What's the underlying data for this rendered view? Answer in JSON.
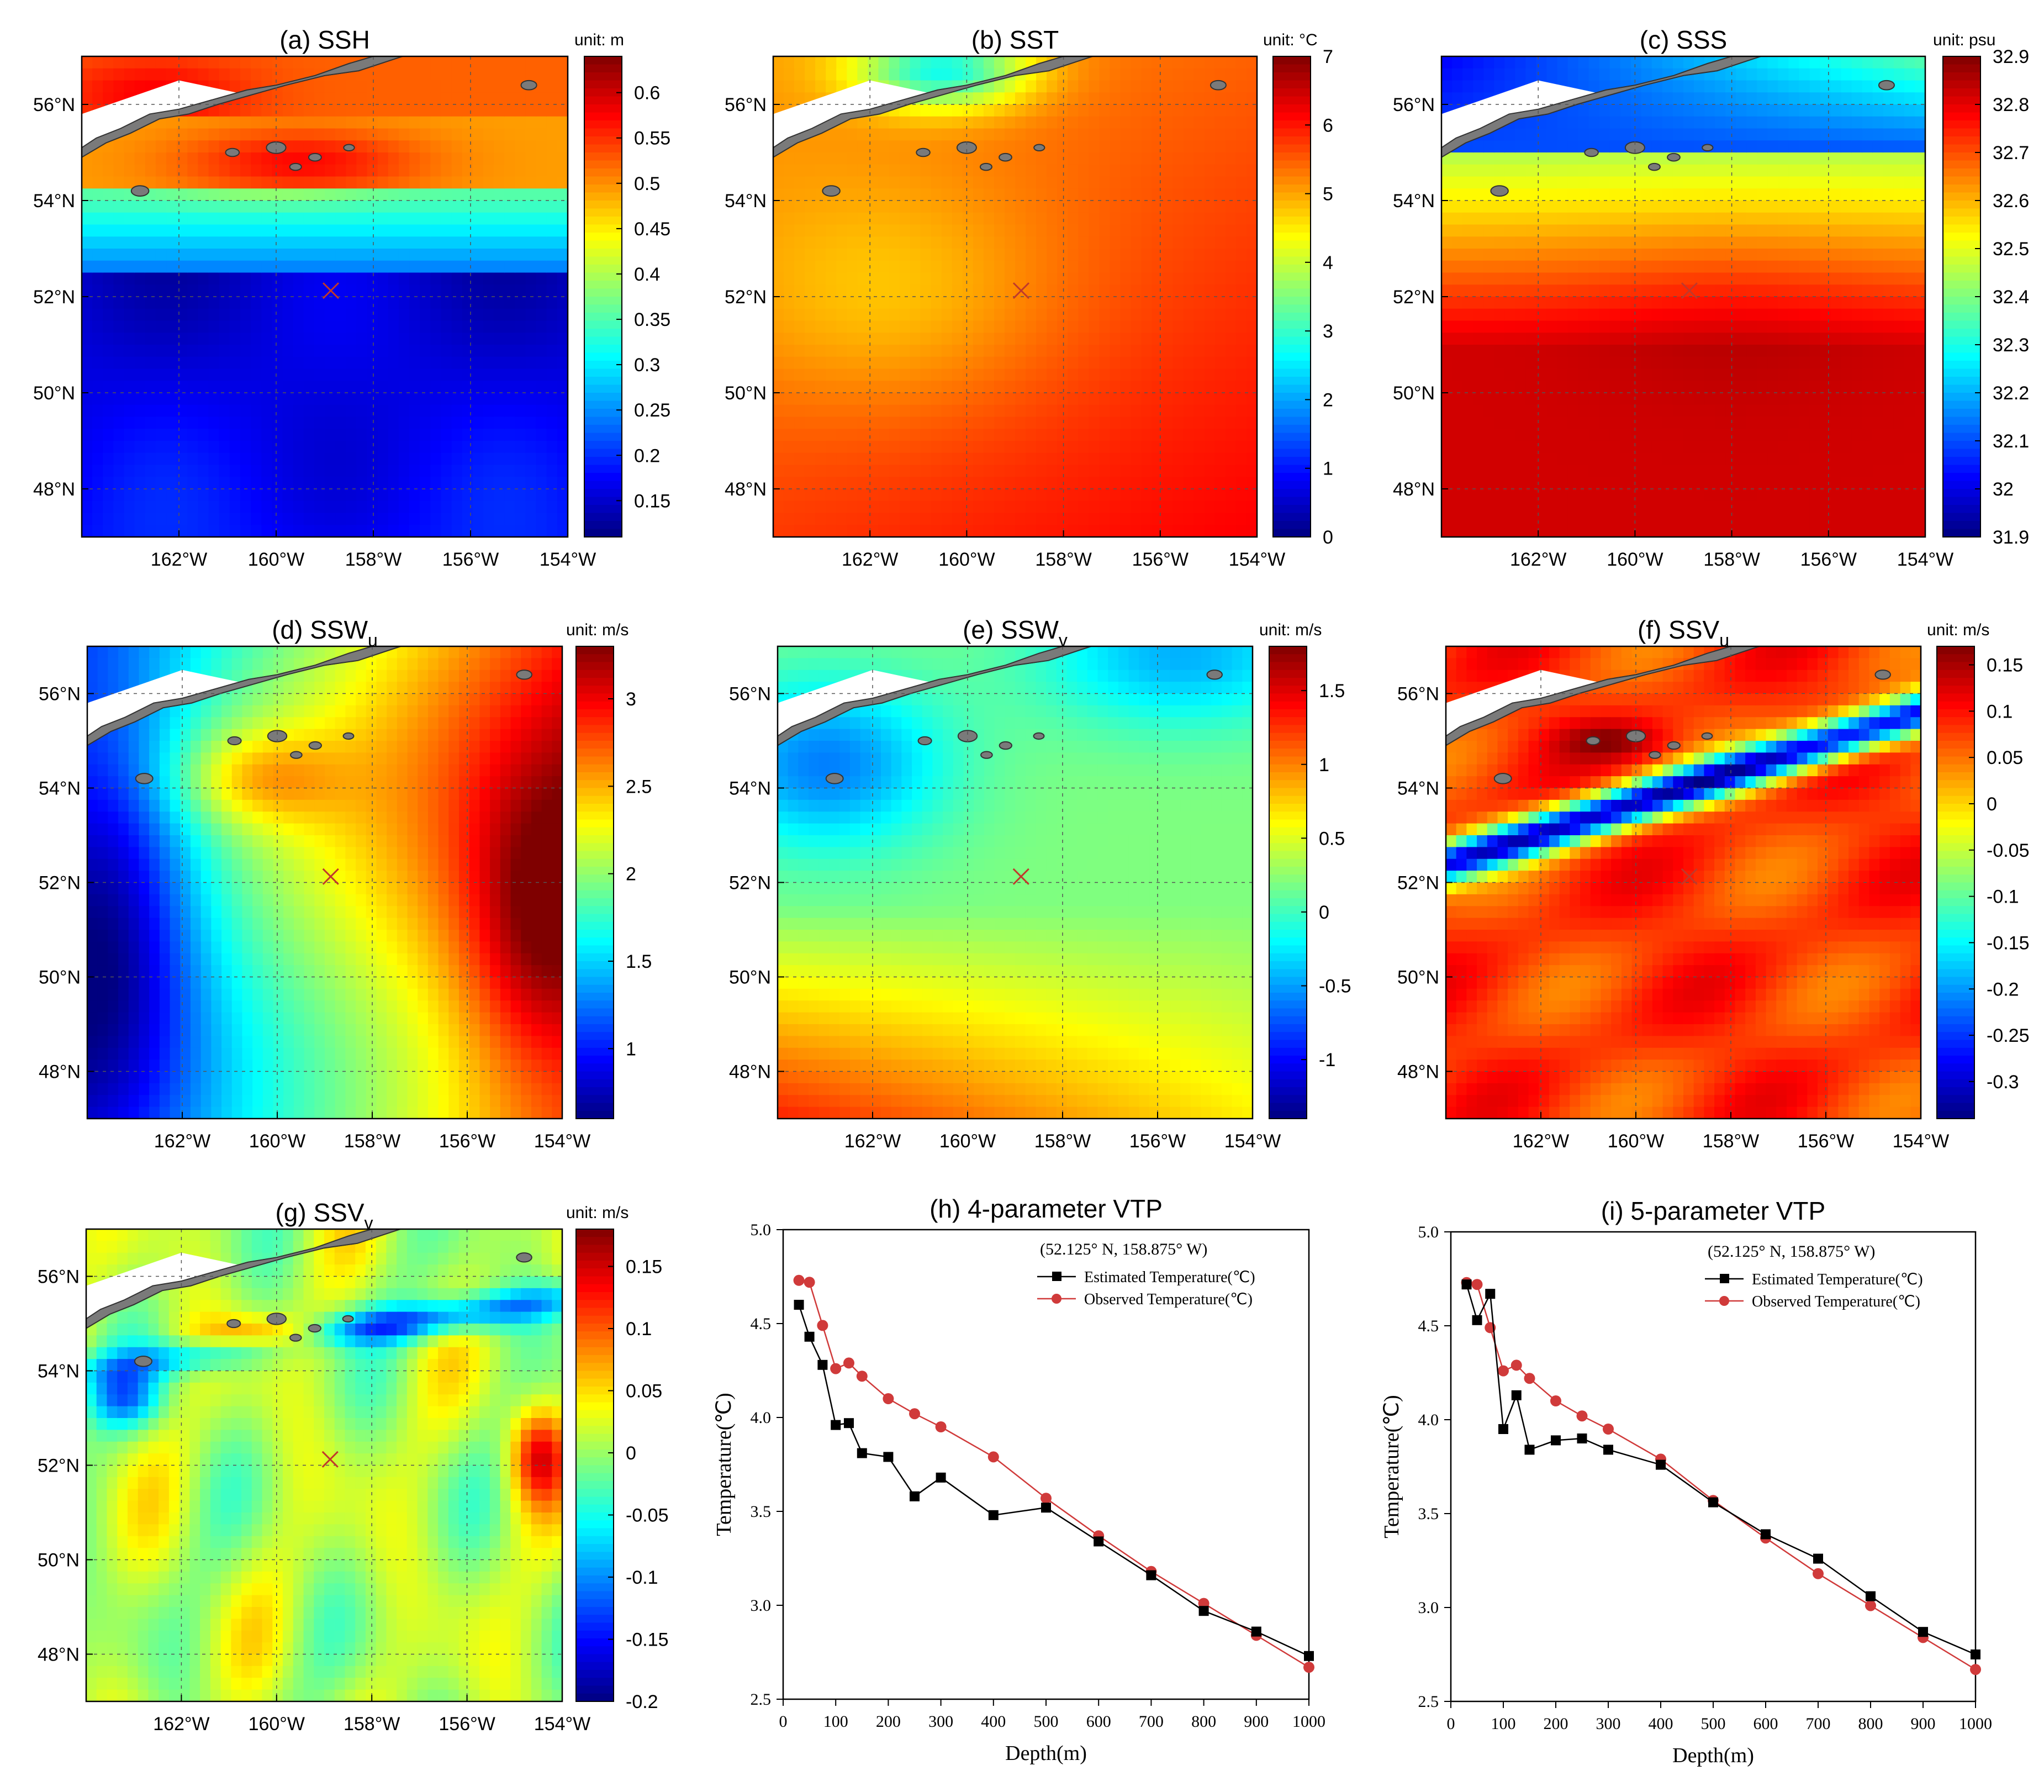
{
  "colors": {
    "jet": [
      "#00007f",
      "#0000ff",
      "#007fff",
      "#00ffff",
      "#7fff7f",
      "#ffff00",
      "#ff7f00",
      "#ff0000",
      "#7f0000"
    ],
    "estimated": "#000000",
    "observed": "#d03a3a",
    "land": "#7a7a7a",
    "marker": "#c0392b"
  },
  "map_axes": {
    "lon_ticks": [
      "162°W",
      "160°W",
      "158°W",
      "156°W",
      "154°W"
    ],
    "lat_ticks": [
      "56°N",
      "54°N",
      "52°N",
      "50°N",
      "48°N"
    ],
    "lon_values": [
      -162,
      -160,
      -158,
      -156,
      -154
    ],
    "lat_values": [
      56,
      54,
      52,
      50,
      48
    ],
    "lon_range": [
      -164,
      -154
    ],
    "lat_range": [
      47,
      57
    ],
    "point": {
      "lat": 52.125,
      "lon": -158.875
    }
  },
  "panels": {
    "a": {
      "label": "(a) SSH",
      "sub": "",
      "unit": "unit: m",
      "ticks": [
        "0.6",
        "0.55",
        "0.5",
        "0.45",
        "0.4",
        "0.35",
        "0.3",
        "0.25",
        "0.2",
        "0.15"
      ],
      "tick_values": [
        0.6,
        0.55,
        0.5,
        0.45,
        0.4,
        0.35,
        0.3,
        0.25,
        0.2,
        0.15
      ],
      "range": [
        0.11,
        0.64
      ],
      "field": "ssh"
    },
    "b": {
      "label": "(b) SST",
      "sub": "",
      "unit": "unit: °C",
      "ticks": [
        "7",
        "6",
        "5",
        "4",
        "3",
        "2",
        "1",
        "0"
      ],
      "tick_values": [
        7,
        6,
        5,
        4,
        3,
        2,
        1,
        0
      ],
      "range": [
        0,
        7
      ],
      "field": "sst"
    },
    "c": {
      "label": "(c) SSS",
      "sub": "",
      "unit": "unit: psu",
      "ticks": [
        "32.9",
        "32.8",
        "32.7",
        "32.6",
        "32.5",
        "32.4",
        "32.3",
        "32.2",
        "32.1",
        "32",
        "31.9"
      ],
      "tick_values": [
        32.9,
        32.8,
        32.7,
        32.6,
        32.5,
        32.4,
        32.3,
        32.2,
        32.1,
        32,
        31.9
      ],
      "range": [
        31.9,
        32.9
      ],
      "field": "sss"
    },
    "d": {
      "label": "(d) SSW",
      "sub": "u",
      "unit": "unit: m/s",
      "ticks": [
        "3",
        "2.5",
        "2",
        "1.5",
        "1"
      ],
      "tick_values": [
        3,
        2.5,
        2,
        1.5,
        1
      ],
      "range": [
        0.6,
        3.3
      ],
      "field": "sswu"
    },
    "e": {
      "label": "(e) SSW",
      "sub": "v",
      "unit": "unit: m/s",
      "ticks": [
        "1.5",
        "1",
        "0.5",
        "0",
        "-0.5",
        "-1"
      ],
      "tick_values": [
        1.5,
        1,
        0.5,
        0,
        -0.5,
        -1
      ],
      "range": [
        -1.4,
        1.8
      ],
      "field": "sswv"
    },
    "f": {
      "label": "(f) SSV",
      "sub": "u",
      "unit": "unit: m/s",
      "ticks": [
        "0.15",
        "0.1",
        "0.05",
        "0",
        "-0.05",
        "-0.1",
        "-0.15",
        "-0.2",
        "-0.25",
        "-0.3"
      ],
      "tick_values": [
        0.15,
        0.1,
        0.05,
        0,
        -0.05,
        -0.1,
        -0.15,
        -0.2,
        -0.25,
        -0.3
      ],
      "range": [
        -0.34,
        0.17
      ],
      "field": "ssvu"
    },
    "g": {
      "label": "(g) SSV",
      "sub": "v",
      "unit": "unit: m/s",
      "ticks": [
        "0.15",
        "0.1",
        "0.05",
        "0",
        "-0.05",
        "-0.1",
        "-0.15",
        "-0.2"
      ],
      "tick_values": [
        0.15,
        0.1,
        0.05,
        0,
        -0.05,
        -0.1,
        -0.15,
        -0.2
      ],
      "range": [
        -0.2,
        0.18
      ],
      "field": "ssvv"
    }
  },
  "chart_data": [
    {
      "type": "line",
      "title": "(h) 4-parameter VTP",
      "annotation": "(52.125° N, 158.875° W)",
      "xlabel": "Depth(m)",
      "ylabel": "Temperature(℃)",
      "xlim": [
        0,
        1000
      ],
      "ylim": [
        2.5,
        5.0
      ],
      "xticks": [
        0,
        100,
        200,
        300,
        400,
        500,
        600,
        700,
        800,
        900,
        1000
      ],
      "yticks": [
        "2.5",
        "3.0",
        "3.5",
        "4.0",
        "4.5",
        "5.0"
      ],
      "ytick_values": [
        2.5,
        3.0,
        3.5,
        4.0,
        4.5,
        5.0
      ],
      "x": [
        30,
        50,
        75,
        100,
        125,
        150,
        200,
        250,
        300,
        400,
        500,
        600,
        700,
        800,
        900,
        1000
      ],
      "series": [
        {
          "name": "Estimated Temperature(℃)",
          "marker": "square",
          "values": [
            4.6,
            4.43,
            4.28,
            3.96,
            3.97,
            3.81,
            3.79,
            3.58,
            3.68,
            3.48,
            3.52,
            3.34,
            3.16,
            2.97,
            2.86,
            2.73
          ]
        },
        {
          "name": "Observed Temperature(℃)",
          "marker": "circle",
          "values": [
            4.73,
            4.72,
            4.49,
            4.26,
            4.29,
            4.22,
            4.1,
            4.02,
            3.95,
            3.79,
            3.57,
            3.37,
            3.18,
            3.01,
            2.84,
            2.67
          ]
        }
      ]
    },
    {
      "type": "line",
      "title": "(i) 5-parameter VTP",
      "annotation": "(52.125° N, 158.875° W)",
      "xlabel": "Depth(m)",
      "ylabel": "Temperature(℃)",
      "xlim": [
        0,
        1000
      ],
      "ylim": [
        2.5,
        5.0
      ],
      "xticks": [
        0,
        100,
        200,
        300,
        400,
        500,
        600,
        700,
        800,
        900,
        1000
      ],
      "yticks": [
        "2.5",
        "3.0",
        "3.5",
        "4.0",
        "4.5",
        "5.0"
      ],
      "ytick_values": [
        2.5,
        3.0,
        3.5,
        4.0,
        4.5,
        5.0
      ],
      "x": [
        30,
        50,
        75,
        100,
        125,
        150,
        200,
        250,
        300,
        400,
        500,
        600,
        700,
        800,
        900,
        1000
      ],
      "series": [
        {
          "name": "Estimated Temperature(℃)",
          "marker": "square",
          "values": [
            4.72,
            4.53,
            4.67,
            3.95,
            4.13,
            3.84,
            3.89,
            3.9,
            3.84,
            3.76,
            3.56,
            3.39,
            3.26,
            3.06,
            2.87,
            2.75
          ]
        },
        {
          "name": "Observed Temperature(℃)",
          "marker": "circle",
          "values": [
            4.73,
            4.72,
            4.49,
            4.26,
            4.29,
            4.22,
            4.1,
            4.02,
            3.95,
            3.79,
            3.57,
            3.37,
            3.18,
            3.01,
            2.84,
            2.67
          ]
        }
      ]
    }
  ]
}
